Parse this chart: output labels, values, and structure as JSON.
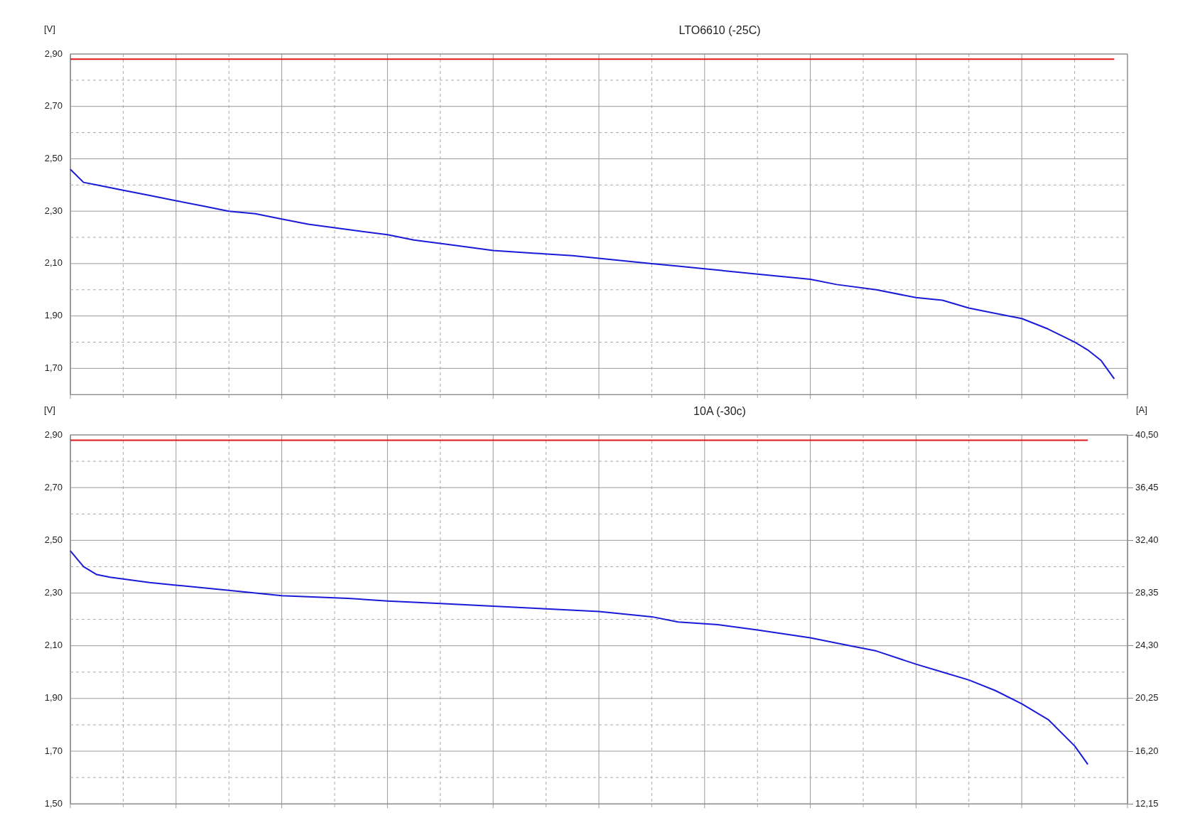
{
  "chart_data": [
    {
      "type": "line",
      "title": "LTO6610 (-25C)",
      "ylabel": "[V]",
      "categories": [
        null,
        null,
        null,
        null,
        null,
        null,
        null,
        null,
        null,
        null,
        null,
        null,
        null,
        null,
        null,
        null,
        null,
        null,
        null,
        null,
        null,
        null,
        null,
        null,
        null,
        null,
        null,
        null,
        null,
        null,
        null,
        null,
        null,
        null,
        null,
        null,
        null,
        null,
        null,
        null,
        null,
        null,
        null,
        null,
        null,
        null,
        null,
        null,
        null,
        null,
        null,
        null,
        null,
        null,
        null,
        null,
        null,
        null,
        null,
        null,
        null,
        null,
        null,
        null,
        null,
        null,
        null,
        null,
        null,
        null,
        null,
        null,
        null,
        null,
        null,
        null,
        null,
        null,
        null,
        null,
        null
      ],
      "ylim": [
        1.6,
        2.9
      ],
      "yticks": [
        {
          "value": 1.7,
          "label": "1,70"
        },
        {
          "value": 1.8,
          "label": null
        },
        {
          "value": 1.9,
          "label": "1,90"
        },
        {
          "value": 2.0,
          "label": null
        },
        {
          "value": 2.1,
          "label": "2,10"
        },
        {
          "value": 2.2,
          "label": null
        },
        {
          "value": 2.3,
          "label": "2,30"
        },
        {
          "value": 2.4,
          "label": null
        },
        {
          "value": 2.5,
          "label": "2,50"
        },
        {
          "value": 2.6,
          "label": null
        },
        {
          "value": 2.7,
          "label": "2,70"
        },
        {
          "value": 2.8,
          "label": null
        },
        {
          "value": 2.9,
          "label": "2,90"
        }
      ],
      "tick_labels": "y",
      "grid": true,
      "legend": false,
      "marker": "none",
      "line_style": "solid",
      "series": [
        {
          "color": "#e01818",
          "values": [
            2.88,
            2.88,
            2.88,
            2.88,
            2.88,
            2.88,
            2.88,
            2.88,
            2.88,
            2.88,
            2.88,
            2.88,
            2.88,
            2.88,
            2.88,
            2.88,
            2.88,
            2.88,
            2.88,
            2.88,
            2.88,
            2.88,
            2.88,
            2.88,
            2.88,
            2.88,
            2.88,
            2.88,
            2.88,
            2.88,
            2.88,
            2.88,
            2.88,
            2.88,
            2.88,
            2.88,
            2.88,
            2.88,
            2.88,
            2.88,
            2.88,
            2.88,
            2.88,
            2.88,
            2.88,
            2.88,
            2.88,
            2.88,
            2.88,
            2.88,
            2.88,
            2.88,
            2.88,
            2.88,
            2.88,
            2.88,
            2.88,
            2.88,
            2.88,
            2.88,
            2.88,
            2.88,
            2.88,
            2.88,
            2.88,
            2.88,
            2.88,
            2.88,
            2.88,
            2.88,
            2.88,
            2.88,
            2.88,
            2.88,
            2.88,
            2.88,
            2.88,
            2.88,
            2.88,
            2.88,
            null
          ]
        },
        {
          "color": "#1a1ad8",
          "values": [
            2.46,
            2.41,
            2.4,
            null,
            2.38,
            null,
            2.36,
            null,
            2.34,
            null,
            2.32,
            null,
            2.3,
            null,
            2.29,
            null,
            2.27,
            null,
            2.25,
            null,
            null,
            2.23,
            null,
            null,
            2.21,
            null,
            2.19,
            null,
            null,
            2.17,
            null,
            null,
            2.15,
            null,
            null,
            2.14,
            null,
            null,
            2.13,
            null,
            2.12,
            null,
            null,
            null,
            2.1,
            null,
            2.09,
            null,
            2.08,
            null,
            null,
            null,
            2.06,
            null,
            null,
            null,
            2.04,
            null,
            2.02,
            null,
            null,
            2.0,
            null,
            null,
            1.97,
            null,
            1.96,
            null,
            1.93,
            null,
            1.91,
            null,
            1.89,
            null,
            1.85,
            null,
            1.8,
            1.77,
            1.73,
            1.66,
            null
          ]
        }
      ]
    },
    {
      "type": "line",
      "title": "10A (-30c)",
      "ylabel": "[V]",
      "y2label": "[A]",
      "categories": [
        null,
        null,
        null,
        null,
        null,
        null,
        null,
        null,
        null,
        null,
        null,
        null,
        null,
        null,
        null,
        null,
        null,
        null,
        null,
        null,
        null,
        null,
        null,
        null,
        null,
        null,
        null,
        null,
        null,
        null,
        null,
        null,
        null,
        null,
        null,
        null,
        null,
        null,
        null,
        null,
        null,
        null,
        null,
        null,
        null,
        null,
        null,
        null,
        null,
        null,
        null,
        null,
        null,
        null,
        null,
        null,
        null,
        null,
        null,
        null,
        null,
        null,
        null,
        null,
        null,
        null,
        null,
        null,
        null,
        null,
        null,
        null,
        null,
        null,
        null,
        null,
        null,
        null,
        null,
        null,
        null
      ],
      "ylim": [
        1.5,
        2.9
      ],
      "yticks": [
        {
          "value": 1.5,
          "label": "1,50"
        },
        {
          "value": 1.6,
          "label": null
        },
        {
          "value": 1.7,
          "label": "1,70"
        },
        {
          "value": 1.8,
          "label": null
        },
        {
          "value": 1.9,
          "label": "1,90"
        },
        {
          "value": 2.0,
          "label": null
        },
        {
          "value": 2.1,
          "label": "2,10"
        },
        {
          "value": 2.2,
          "label": null
        },
        {
          "value": 2.3,
          "label": "2,30"
        },
        {
          "value": 2.4,
          "label": null
        },
        {
          "value": 2.5,
          "label": "2,50"
        },
        {
          "value": 2.6,
          "label": null
        },
        {
          "value": 2.7,
          "label": "2,70"
        },
        {
          "value": 2.8,
          "label": null
        },
        {
          "value": 2.9,
          "label": "2,90"
        }
      ],
      "y2lim": [
        12.15,
        40.5
      ],
      "y2ticks": [
        {
          "value": 12.15,
          "label": "12,15"
        },
        {
          "value": 16.2,
          "label": "16,20"
        },
        {
          "value": 20.25,
          "label": "20,25"
        },
        {
          "value": 24.3,
          "label": "24,30"
        },
        {
          "value": 28.35,
          "label": "28,35"
        },
        {
          "value": 32.4,
          "label": "32,40"
        },
        {
          "value": 36.45,
          "label": "36,45"
        },
        {
          "value": 40.5,
          "label": "40,50"
        }
      ],
      "tick_labels": "y",
      "grid": true,
      "legend": false,
      "marker": "none",
      "line_style": "solid",
      "series": [
        {
          "color": "#e01818",
          "values": [
            2.88,
            2.88,
            2.88,
            2.88,
            2.88,
            2.88,
            2.88,
            2.88,
            2.88,
            2.88,
            2.88,
            2.88,
            2.88,
            2.88,
            2.88,
            2.88,
            2.88,
            2.88,
            2.88,
            2.88,
            2.88,
            2.88,
            2.88,
            2.88,
            2.88,
            2.88,
            2.88,
            2.88,
            2.88,
            2.88,
            2.88,
            2.88,
            2.88,
            2.88,
            2.88,
            2.88,
            2.88,
            2.88,
            2.88,
            2.88,
            2.88,
            2.88,
            2.88,
            2.88,
            2.88,
            2.88,
            2.88,
            2.88,
            2.88,
            2.88,
            2.88,
            2.88,
            2.88,
            2.88,
            2.88,
            2.88,
            2.88,
            2.88,
            2.88,
            2.88,
            2.88,
            2.88,
            2.88,
            2.88,
            2.88,
            2.88,
            2.88,
            2.88,
            2.88,
            2.88,
            2.88,
            2.88,
            2.88,
            2.88,
            2.88,
            2.88,
            2.88,
            2.88,
            null,
            null,
            null
          ]
        },
        {
          "color": "#1a1ad8",
          "values": [
            2.46,
            2.4,
            2.37,
            2.36,
            null,
            null,
            2.34,
            null,
            2.33,
            null,
            null,
            null,
            2.31,
            null,
            null,
            null,
            2.29,
            null,
            null,
            null,
            null,
            2.28,
            null,
            null,
            2.27,
            null,
            null,
            null,
            2.26,
            null,
            null,
            null,
            2.25,
            null,
            null,
            null,
            2.24,
            null,
            null,
            null,
            2.23,
            null,
            null,
            null,
            2.21,
            null,
            2.19,
            null,
            null,
            2.18,
            null,
            null,
            2.16,
            null,
            null,
            null,
            2.13,
            null,
            2.11,
            null,
            null,
            2.08,
            null,
            null,
            2.03,
            null,
            2.0,
            null,
            1.97,
            null,
            1.93,
            null,
            1.88,
            null,
            1.82,
            null,
            1.72,
            1.65,
            null,
            null,
            null
          ]
        }
      ]
    }
  ]
}
